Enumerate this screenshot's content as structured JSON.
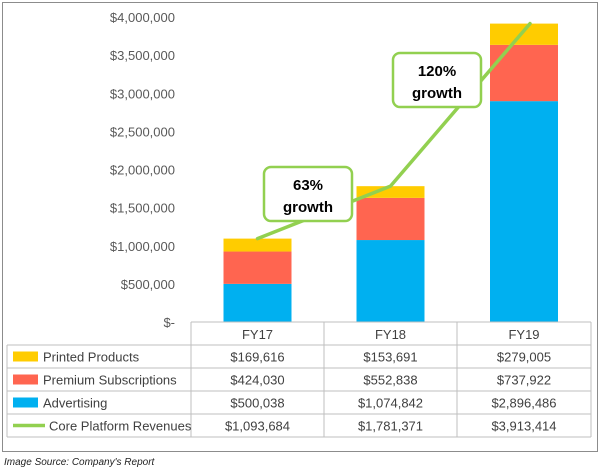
{
  "chart_data": {
    "type": "bar",
    "stacked": true,
    "categories": [
      "FY17",
      "FY18",
      "FY19"
    ],
    "ylim": [
      0,
      4000000
    ],
    "yticks": [
      0,
      500000,
      1000000,
      1500000,
      2000000,
      2500000,
      3000000,
      3500000,
      4000000
    ],
    "ytick_labels": [
      "$-",
      "$500,000",
      "$1,000,000",
      "$1,500,000",
      "$2,000,000",
      "$2,500,000",
      "$3,000,000",
      "$3,500,000",
      "$4,000,000"
    ],
    "series": [
      {
        "name": "Advertising",
        "color": "#00b0f0",
        "values": [
          500038,
          1074842,
          2896486
        ],
        "labels": [
          "$500,038",
          "$1,074,842",
          "$2,896,486"
        ]
      },
      {
        "name": "Premium Subscriptions",
        "color": "#ff6550",
        "values": [
          424030,
          552838,
          737922
        ],
        "labels": [
          "$424,030",
          "$552,838",
          "$737,922"
        ]
      },
      {
        "name": "Printed Products",
        "color": "#ffcc00",
        "values": [
          169616,
          153691,
          279005
        ],
        "labels": [
          "$169,616",
          "$153,691",
          "$279,005"
        ]
      }
    ],
    "line": {
      "name": "Core Platform Revenues",
      "color": "#92d050",
      "values": [
        1093684,
        1781371,
        3913414
      ],
      "labels": [
        "$1,093,684",
        "$1,781,371",
        "$3,913,414"
      ]
    },
    "table_row_order": [
      "Printed Products",
      "Premium Subscriptions",
      "Advertising",
      "Core Platform Revenues"
    ],
    "annotations": [
      {
        "pct": "63%",
        "word": "growth",
        "between": [
          "FY17",
          "FY18"
        ]
      },
      {
        "pct": "120%",
        "word": "growth",
        "between": [
          "FY18",
          "FY19"
        ]
      }
    ],
    "grid": false,
    "legend": "data-table"
  },
  "footer": {
    "source": "Image Source: Company's Report"
  }
}
